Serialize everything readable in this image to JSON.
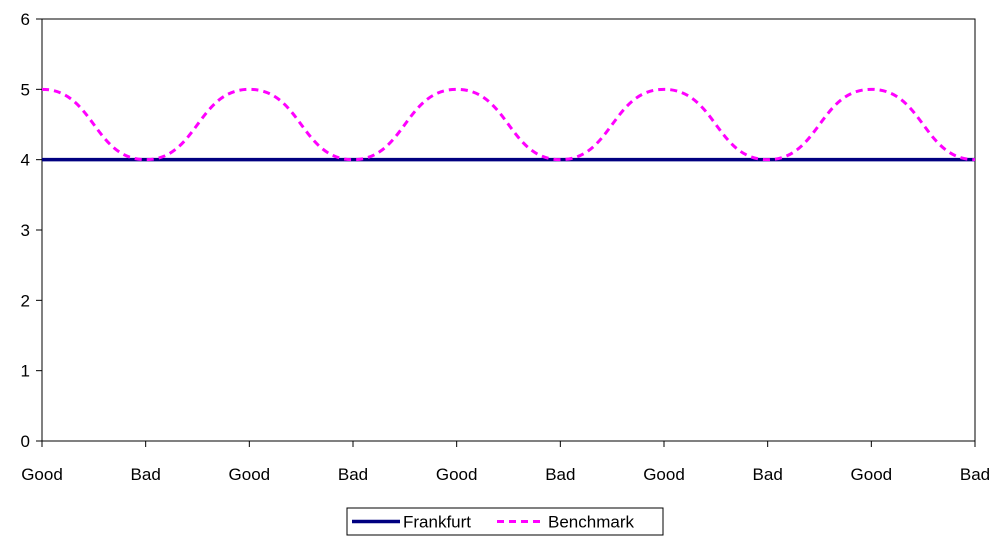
{
  "chart_data": {
    "type": "line",
    "categories": [
      "Good",
      "Bad",
      "Good",
      "Bad",
      "Good",
      "Bad",
      "Good",
      "Bad",
      "Good",
      "Bad"
    ],
    "series": [
      {
        "name": "Frankfurt",
        "values": [
          4,
          4,
          4,
          4,
          4,
          4,
          4,
          4,
          4,
          4
        ],
        "color": "#000080",
        "style": "solid"
      },
      {
        "name": "Benchmark",
        "values": [
          5,
          4,
          5,
          4,
          5,
          4,
          5,
          4,
          5,
          4
        ],
        "color": "#ff00ff",
        "style": "dashed",
        "smooth": true
      }
    ],
    "ylim": [
      0,
      6
    ],
    "yticks": [
      "0",
      "1",
      "2",
      "3",
      "4",
      "5",
      "6"
    ],
    "grid": false,
    "legend_position": "bottom"
  }
}
